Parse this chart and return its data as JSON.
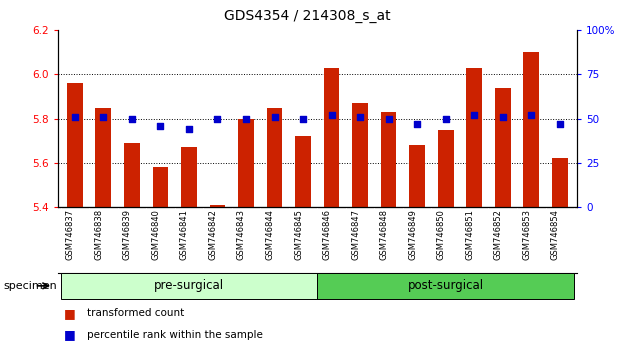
{
  "title": "GDS4354 / 214308_s_at",
  "categories": [
    "GSM746837",
    "GSM746838",
    "GSM746839",
    "GSM746840",
    "GSM746841",
    "GSM746842",
    "GSM746843",
    "GSM746844",
    "GSM746845",
    "GSM746846",
    "GSM746847",
    "GSM746848",
    "GSM746849",
    "GSM746850",
    "GSM746851",
    "GSM746852",
    "GSM746853",
    "GSM746854"
  ],
  "bar_values": [
    5.96,
    5.85,
    5.69,
    5.58,
    5.67,
    5.41,
    5.8,
    5.85,
    5.72,
    6.03,
    5.87,
    5.83,
    5.68,
    5.75,
    6.03,
    5.94,
    6.1,
    5.62
  ],
  "percentile_values": [
    51,
    51,
    50,
    46,
    44,
    50,
    50,
    51,
    50,
    52,
    51,
    50,
    47,
    50,
    52,
    51,
    52,
    47
  ],
  "bar_color": "#cc2200",
  "dot_color": "#0000cc",
  "ylim_left": [
    5.4,
    6.2
  ],
  "ylim_right": [
    0,
    100
  ],
  "yticks_left": [
    5.4,
    5.6,
    5.8,
    6.0,
    6.2
  ],
  "yticks_right": [
    0,
    25,
    50,
    75,
    100
  ],
  "ytick_labels_right": [
    "0",
    "25",
    "50",
    "75",
    "100%"
  ],
  "grid_values": [
    5.6,
    5.8,
    6.0
  ],
  "groups": [
    {
      "label": "pre-surgical",
      "start": 0,
      "end": 9,
      "color": "#ccffcc"
    },
    {
      "label": "post-surgical",
      "start": 9,
      "end": 18,
      "color": "#55cc55"
    }
  ],
  "specimen_label": "specimen",
  "legend_items": [
    {
      "label": "transformed count",
      "color": "#cc2200"
    },
    {
      "label": "percentile rank within the sample",
      "color": "#0000cc"
    }
  ],
  "background_color": "#ffffff",
  "tick_area_color": "#bbbbbb"
}
